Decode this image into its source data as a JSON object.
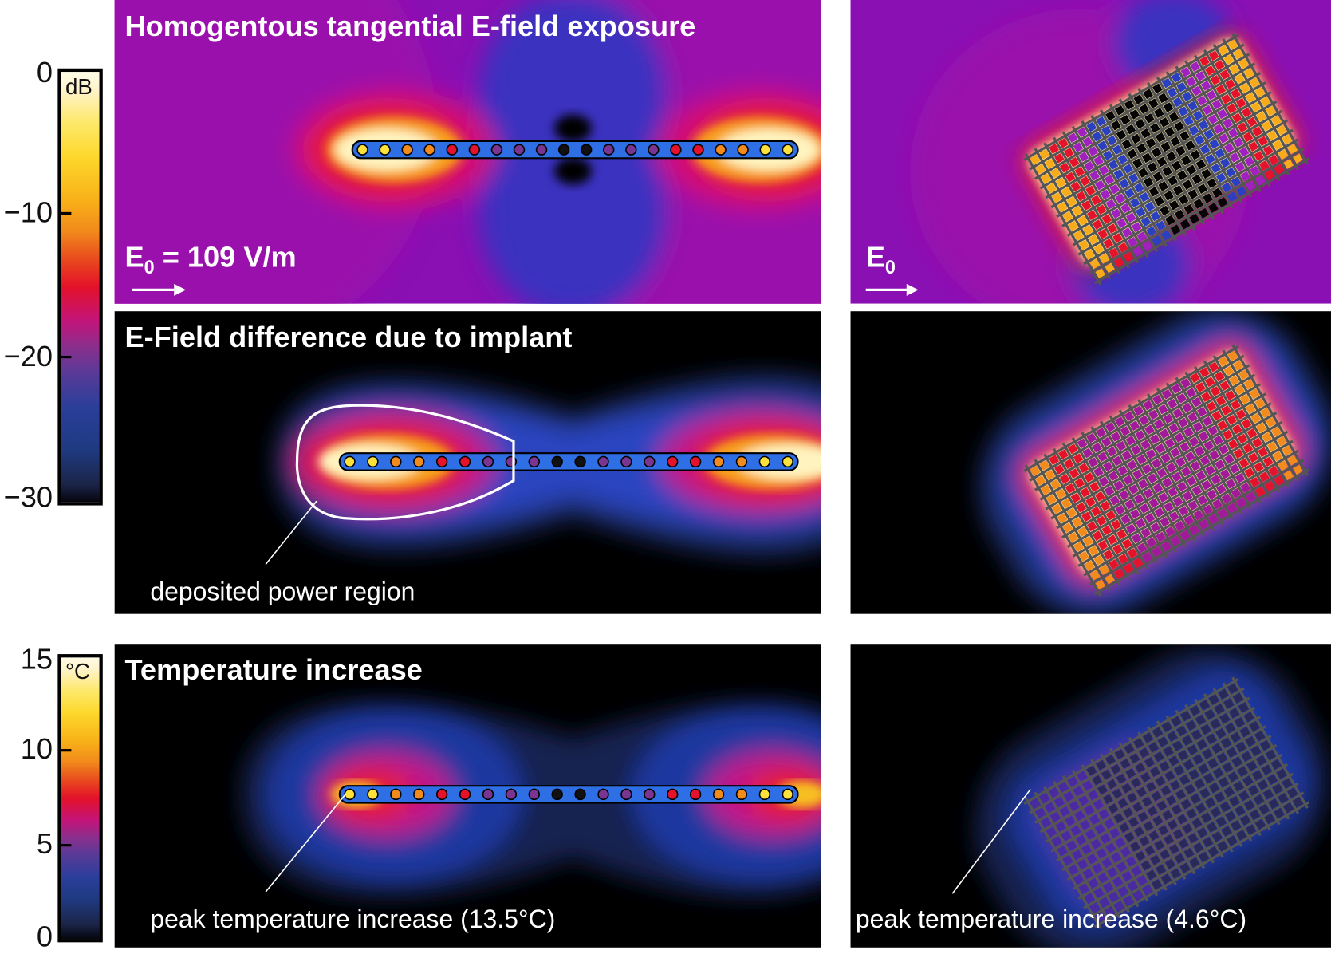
{
  "panels": {
    "exposure_title": "Homogentous tangential E-field exposure",
    "exposure_label_main": "E",
    "exposure_label_sub": "0",
    "exposure_value": " = 109 V/m",
    "exposure_label_right_main": "E",
    "exposure_label_right_sub": "0",
    "difference_title": "E-Field difference due to implant",
    "difference_annotation": "deposited power region",
    "temperature_title": "Temperature increase",
    "temperature_annotation_left": "peak temperature increase (13.5°C)",
    "temperature_annotation_right": "peak temperature increase (4.6°C)"
  },
  "colorbar_db": {
    "unit": "dB",
    "ticks": [
      "0",
      "−10",
      "−20",
      "−30"
    ],
    "range": [
      -30,
      0
    ]
  },
  "colorbar_temp": {
    "unit": "°C",
    "ticks": [
      "15",
      "10",
      "5",
      "0"
    ],
    "range": [
      0,
      15
    ]
  },
  "colors": {
    "background_field": "#8a10b4",
    "implant": "#2f6fe6",
    "colormap": [
      "#05050c",
      "#1f2a55",
      "#23408f",
      "#3a3a9a",
      "#7a3591",
      "#c2147a",
      "#e4122a",
      "#ee6a1e",
      "#f8ab18",
      "#fde23c",
      "#fff3c0"
    ]
  }
}
